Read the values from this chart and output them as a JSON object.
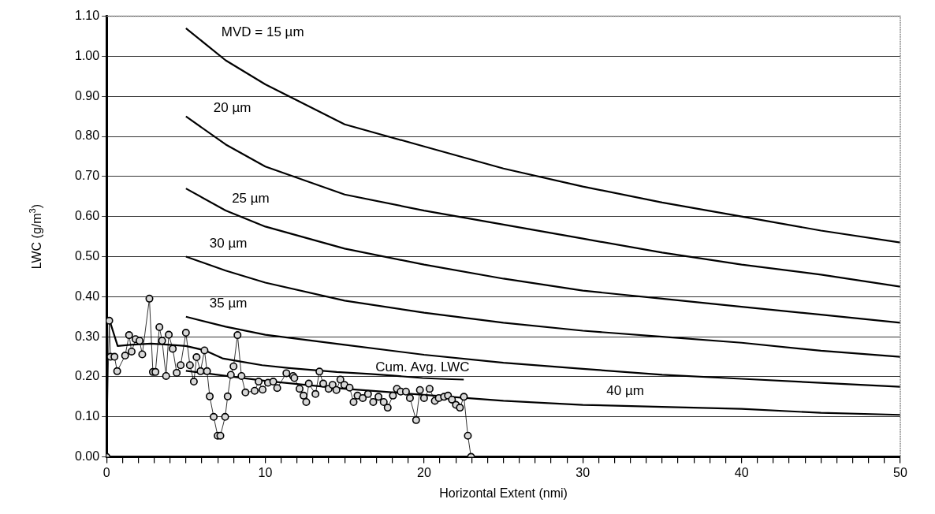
{
  "chart_data": {
    "type": "line",
    "xlabel": "Horizontal Extent (nmi)",
    "ylabel": "LWC (g/m$^{3}$)",
    "xlim": [
      0,
      50
    ],
    "xticks": [
      0,
      {
        "value": 1,
        "label": null
      },
      {
        "value": 2,
        "label": null
      },
      {
        "value": 3,
        "label": null
      },
      {
        "value": 4,
        "label": null
      },
      {
        "value": 5,
        "label": null
      },
      {
        "value": 6,
        "label": null
      },
      {
        "value": 7,
        "label": null
      },
      {
        "value": 8,
        "label": null
      },
      {
        "value": 9,
        "label": null
      },
      10,
      {
        "value": 11,
        "label": null
      },
      {
        "value": 12,
        "label": null
      },
      {
        "value": 13,
        "label": null
      },
      {
        "value": 14,
        "label": null
      },
      {
        "value": 15,
        "label": null
      },
      {
        "value": 16,
        "label": null
      },
      {
        "value": 17,
        "label": null
      },
      {
        "value": 18,
        "label": null
      },
      {
        "value": 19,
        "label": null
      },
      20,
      {
        "value": 21,
        "label": null
      },
      {
        "value": 22,
        "label": null
      },
      {
        "value": 23,
        "label": null
      },
      {
        "value": 24,
        "label": null
      },
      {
        "value": 25,
        "label": null
      },
      {
        "value": 26,
        "label": null
      },
      {
        "value": 27,
        "label": null
      },
      {
        "value": 28,
        "label": null
      },
      {
        "value": 29,
        "label": null
      },
      30,
      {
        "value": 31,
        "label": null
      },
      {
        "value": 32,
        "label": null
      },
      {
        "value": 33,
        "label": null
      },
      {
        "value": 34,
        "label": null
      },
      {
        "value": 35,
        "label": null
      },
      {
        "value": 36,
        "label": null
      },
      {
        "value": 37,
        "label": null
      },
      {
        "value": 38,
        "label": null
      },
      {
        "value": 39,
        "label": null
      },
      40,
      {
        "value": 41,
        "label": null
      },
      {
        "value": 42,
        "label": null
      },
      {
        "value": 43,
        "label": null
      },
      {
        "value": 44,
        "label": null
      },
      {
        "value": 45,
        "label": null
      },
      {
        "value": 46,
        "label": null
      },
      {
        "value": 47,
        "label": null
      },
      {
        "value": 48,
        "label": null
      },
      {
        "value": 49,
        "label": null
      },
      50
    ],
    "ylim": [
      0,
      1.1
    ],
    "yticks": [
      {
        "value": 0,
        "label": "0.00"
      },
      {
        "value": 0.1,
        "label": "0.10"
      },
      {
        "value": 0.2,
        "label": "0.20"
      },
      {
        "value": 0.3,
        "label": "0.30"
      },
      {
        "value": 0.4,
        "label": "0.40"
      },
      {
        "value": 0.5,
        "label": "0.50"
      },
      {
        "value": 0.6,
        "label": "0.60"
      },
      {
        "value": 0.7,
        "label": "0.70"
      },
      {
        "value": 0.8,
        "label": "0.80"
      },
      {
        "value": 0.9,
        "label": "0.90"
      },
      {
        "value": 1.0,
        "label": "1.00"
      },
      {
        "value": 1.1,
        "label": "1.10"
      }
    ],
    "grid": "y",
    "series": [
      {
        "color": "#000000",
        "marker": "circle",
        "x": [
          0,
          0.17,
          0.25,
          0.5,
          0.67,
          1.17,
          1.42,
          1.58,
          1.83,
          2.08,
          2.25,
          2.7,
          2.92,
          3.08,
          3.33,
          3.5,
          3.75,
          3.92,
          4.17,
          4.42,
          4.67,
          5.0,
          5.25,
          5.5,
          5.67,
          5.92,
          6.17,
          6.33,
          6.5,
          6.75,
          7.0,
          7.17,
          7.47,
          7.63,
          7.83,
          8.0,
          8.25,
          8.5,
          8.75,
          9.33,
          9.58,
          9.83,
          10.17,
          10.5,
          10.75,
          11.33,
          11.75,
          11.83,
          12.16,
          12.41,
          12.58,
          12.74,
          13.16,
          13.41,
          13.65,
          13.99,
          14.24,
          14.48,
          14.73,
          14.98,
          15.31,
          15.56,
          15.81,
          16.14,
          16.47,
          16.8,
          17.13,
          17.46,
          17.71,
          18.04,
          18.29,
          18.53,
          18.86,
          19.11,
          19.5,
          19.74,
          20.0,
          20.35,
          20.68,
          20.93,
          21.26,
          21.51,
          21.76,
          22.01,
          22.26,
          22.51,
          22.76,
          22.96
        ],
        "values": [
          0,
          0.34,
          0.25,
          0.25,
          0.214,
          0.253,
          0.304,
          0.263,
          0.294,
          0.29,
          0.256,
          0.395,
          0.212,
          0.212,
          0.324,
          0.29,
          0.202,
          0.305,
          0.27,
          0.21,
          0.229,
          0.31,
          0.229,
          0.188,
          0.249,
          0.214,
          0.266,
          0.214,
          0.151,
          0.1,
          0.053,
          0.053,
          0.1,
          0.151,
          0.205,
          0.226,
          0.304,
          0.202,
          0.161,
          0.165,
          0.188,
          0.168,
          0.185,
          0.188,
          0.172,
          0.209,
          0.202,
          0.197,
          0.17,
          0.153,
          0.137,
          0.183,
          0.157,
          0.213,
          0.183,
          0.17,
          0.18,
          0.167,
          0.193,
          0.18,
          0.173,
          0.137,
          0.153,
          0.147,
          0.157,
          0.137,
          0.15,
          0.137,
          0.123,
          0.153,
          0.17,
          0.163,
          0.163,
          0.147,
          0.092,
          0.167,
          0.147,
          0.17,
          0.14,
          0.147,
          0.15,
          0.153,
          0.143,
          0.13,
          0.123,
          0.15,
          0.053,
          0
        ]
      },
      {
        "name": "Cum. Avg. LWC",
        "color": "#000000",
        "marker": "none",
        "x": [
          0.2,
          0.7,
          1.5,
          2.8,
          4,
          5,
          6.2,
          7.3,
          8.3,
          9.8,
          11.5,
          13,
          14.5,
          16.6,
          18,
          19.9,
          21,
          22.5
        ],
        "values": [
          0.34,
          0.277,
          0.28,
          0.283,
          0.28,
          0.277,
          0.266,
          0.246,
          0.239,
          0.229,
          0.222,
          0.217,
          0.212,
          0.207,
          0.203,
          0.197,
          0.195,
          0.193
        ]
      },
      {
        "name": "MVD = 15 µm",
        "color": "#000000",
        "marker": "none",
        "x": [
          5,
          7.5,
          10,
          15,
          20,
          25,
          30,
          35,
          40,
          45,
          50
        ],
        "values": [
          1.07,
          0.99,
          0.93,
          0.83,
          0.775,
          0.72,
          0.675,
          0.635,
          0.6,
          0.565,
          0.535
        ]
      },
      {
        "name": "20 µm",
        "color": "#000000",
        "marker": "none",
        "x": [
          5,
          7.5,
          10,
          15,
          20,
          25,
          30,
          35,
          40,
          45,
          50
        ],
        "values": [
          0.85,
          0.78,
          0.725,
          0.655,
          0.615,
          0.58,
          0.545,
          0.51,
          0.48,
          0.455,
          0.425
        ]
      },
      {
        "name": "25 µm",
        "color": "#000000",
        "marker": "none",
        "x": [
          5,
          7.5,
          10,
          15,
          20,
          25,
          30,
          35,
          40,
          45,
          50
        ],
        "values": [
          0.67,
          0.615,
          0.575,
          0.52,
          0.48,
          0.445,
          0.415,
          0.395,
          0.375,
          0.355,
          0.335
        ]
      },
      {
        "name": "30 µm",
        "color": "#000000",
        "marker": "none",
        "x": [
          5,
          7.5,
          10,
          15,
          20,
          25,
          30,
          35,
          40,
          45,
          50
        ],
        "values": [
          0.5,
          0.465,
          0.435,
          0.39,
          0.36,
          0.335,
          0.315,
          0.3,
          0.285,
          0.265,
          0.25
        ]
      },
      {
        "name": "35 µm",
        "color": "#000000",
        "marker": "none",
        "x": [
          5,
          7.5,
          10,
          15,
          20,
          25,
          30,
          35,
          40,
          45,
          50
        ],
        "values": [
          0.35,
          0.325,
          0.305,
          0.28,
          0.255,
          0.235,
          0.22,
          0.205,
          0.195,
          0.185,
          0.175
        ]
      },
      {
        "name": "40 µm",
        "color": "#000000",
        "marker": "none",
        "x": [
          5,
          10,
          15,
          20,
          25,
          30,
          35,
          40,
          45,
          50
        ],
        "values": [
          0.215,
          0.19,
          0.17,
          0.155,
          0.14,
          0.13,
          0.125,
          0.12,
          0.11,
          0.105
        ]
      }
    ]
  }
}
